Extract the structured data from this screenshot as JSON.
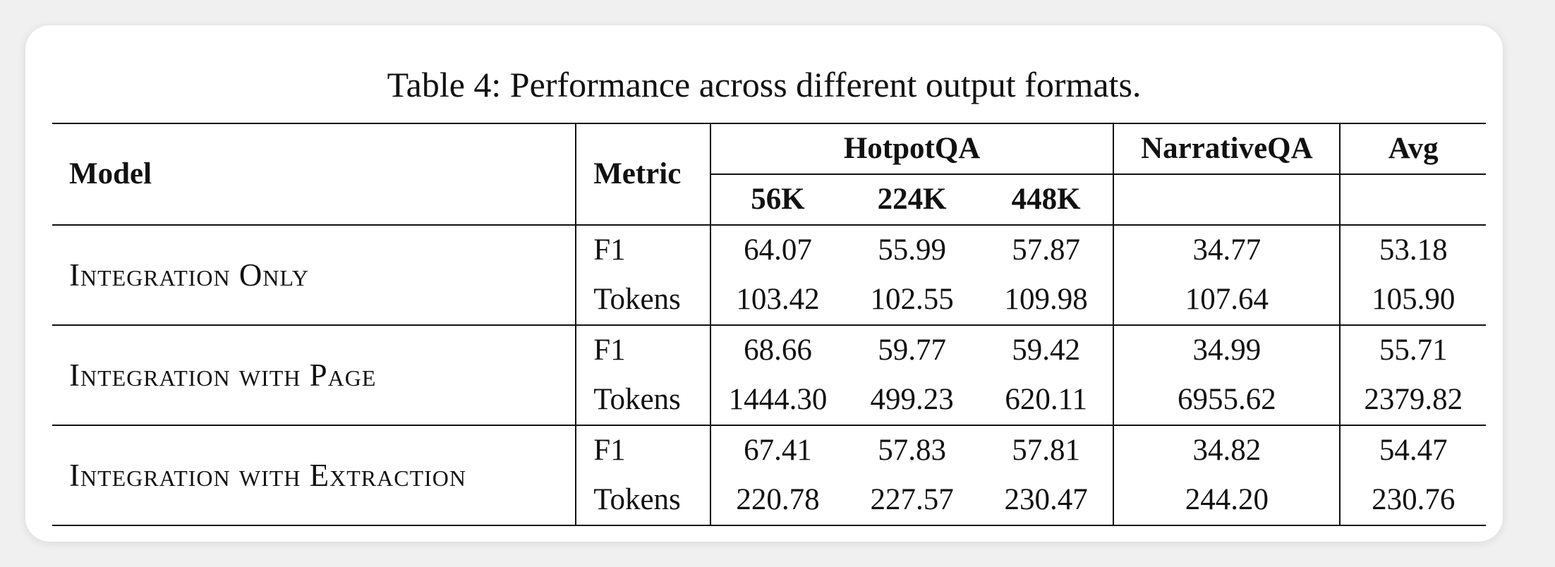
{
  "caption": "Table 4: Performance across different output formats.",
  "headers": {
    "model": "Model",
    "metric": "Metric",
    "hotpotqa": "HotpotQA",
    "narrativeqa": "NarrativeQA",
    "avg": "Avg",
    "hotpot_sub": [
      "56K",
      "224K",
      "448K"
    ]
  },
  "rows": [
    {
      "model": "Integration Only",
      "f1_label": "F1",
      "tokens_label": "Tokens",
      "f1": [
        "64.07",
        "55.99",
        "57.87",
        "34.77",
        "53.18"
      ],
      "tokens": [
        "103.42",
        "102.55",
        "109.98",
        "107.64",
        "105.90"
      ]
    },
    {
      "model": "Integration with Page",
      "f1_label": "F1",
      "tokens_label": "Tokens",
      "f1": [
        "68.66",
        "59.77",
        "59.42",
        "34.99",
        "55.71"
      ],
      "tokens": [
        "1444.30",
        "499.23",
        "620.11",
        "6955.62",
        "2379.82"
      ]
    },
    {
      "model": "Integration with Extraction",
      "f1_label": "F1",
      "tokens_label": "Tokens",
      "f1": [
        "67.41",
        "57.83",
        "57.81",
        "34.82",
        "54.47"
      ],
      "tokens": [
        "220.78",
        "227.57",
        "230.47",
        "244.20",
        "230.76"
      ]
    }
  ]
}
